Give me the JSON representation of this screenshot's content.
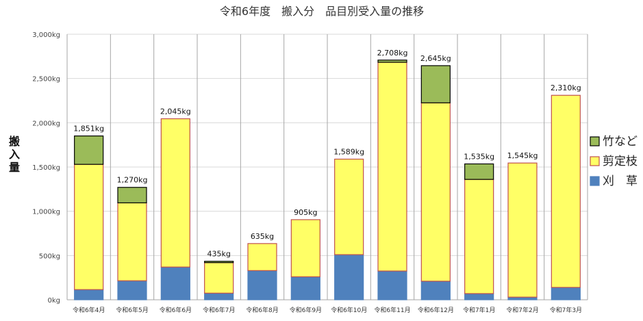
{
  "chart_data": {
    "type": "bar",
    "stacked": true,
    "title": "令和6年度　搬入分　品目別受入量の推移",
    "ylabel": "搬入量",
    "xlabel": "",
    "ylim": [
      0,
      3000
    ],
    "yticks": [
      0,
      500,
      1000,
      1500,
      2000,
      2500,
      3000
    ],
    "ytick_labels": [
      "0kg",
      "500kg",
      "1,000kg",
      "1,500kg",
      "2,000kg",
      "2,500kg",
      "3,000kg"
    ],
    "grid": true,
    "legend_position": "right",
    "categories": [
      "令和6年4月",
      "令和6年5月",
      "令和6年6月",
      "令和6年7月",
      "令和6年8月",
      "令和6年9月",
      "令和6年10月",
      "令和6年11月",
      "令和6年12月",
      "令和7年1月",
      "令和7年2月",
      "令和7年3月"
    ],
    "series": [
      {
        "name": "刈　草",
        "color": "#4f81bd",
        "stroke": "#4f81bd",
        "values": [
          115,
          215,
          370,
          75,
          330,
          260,
          510,
          325,
          210,
          70,
          30,
          140
        ]
      },
      {
        "name": "剪定枝",
        "color": "#ffff66",
        "stroke": "#c0504d",
        "values": [
          1415,
          880,
          1675,
          345,
          305,
          645,
          1079,
          2358,
          2015,
          1290,
          1515,
          2170
        ]
      },
      {
        "name": "竹など",
        "color": "#9bbb59",
        "stroke": "#000000",
        "values": [
          321,
          175,
          0,
          15,
          0,
          0,
          0,
          25,
          420,
          175,
          0,
          0
        ]
      }
    ],
    "totals": [
      1851,
      1270,
      2045,
      435,
      635,
      905,
      1589,
      2708,
      2645,
      1535,
      1545,
      2310
    ],
    "total_labels": [
      "1,851kg",
      "1,270kg",
      "2,045kg",
      "435kg",
      "635kg",
      "905kg",
      "1,589kg",
      "2,708kg",
      "2,645kg",
      "1,535kg",
      "1,545kg",
      "2,310kg"
    ],
    "legend_order": [
      "竹など",
      "剪定枝",
      "刈　草"
    ]
  }
}
